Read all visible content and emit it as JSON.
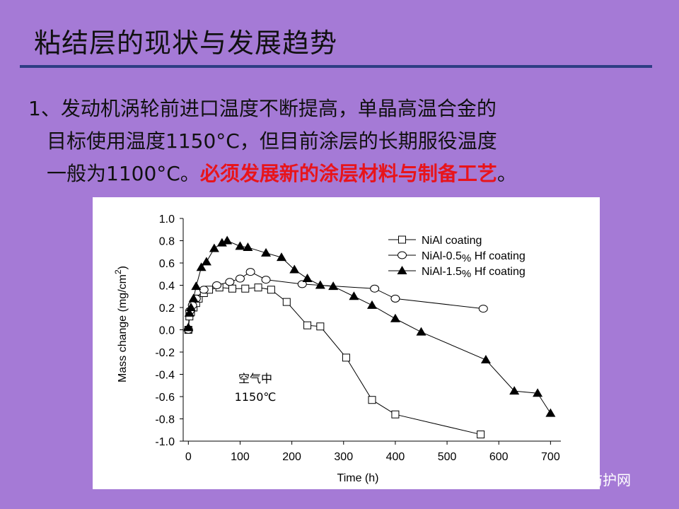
{
  "slide": {
    "title": "粘结层的现状与发展趋势",
    "line1": "1、发动机涡轮前进口温度不断提高，单晶高温合金的",
    "line2": "目标使用温度1150°C，但目前涂层的长期服役温度",
    "line3_normal": "一般为1100°C。",
    "line3_red": "必须发展新的涂层材料与制备工艺",
    "line3_end": "。"
  },
  "watermark": {
    "text": "中国腐蚀与防护网",
    "icon": "wechat-icon"
  },
  "colors": {
    "background": "#a57ad6",
    "rule": "#2e3d84",
    "highlight": "#e8141b"
  },
  "chart_data": {
    "type": "line",
    "xlabel": "Time  (h)",
    "ylabel": "Mass change  (mg/cm",
    "ylabel_sup": "2",
    "ylabel_end": ")",
    "xlim": [
      -10,
      720
    ],
    "ylim": [
      -1.0,
      1.0
    ],
    "xticks": [
      "0",
      "100",
      "200",
      "300",
      "400",
      "500",
      "600",
      "700"
    ],
    "xtick_values": [
      0,
      100,
      200,
      300,
      400,
      500,
      600,
      700
    ],
    "yticks": [
      "1.0",
      "0.8",
      "0.6",
      "0.4",
      "0.2",
      "0.0",
      "-0.2",
      "-0.4",
      "-0.6",
      "-0.8",
      "-1.0"
    ],
    "ytick_values": [
      1.0,
      0.8,
      0.6,
      0.4,
      0.2,
      0.0,
      -0.2,
      -0.4,
      -0.6,
      -0.8,
      -1.0
    ],
    "annotation": [
      "空气中",
      "1150℃"
    ],
    "legend_position": "top-right",
    "series": [
      {
        "name": "NiAl coating",
        "marker": "square",
        "points": [
          [
            0,
            0.0
          ],
          [
            2,
            0.12
          ],
          [
            5,
            0.16
          ],
          [
            10,
            0.2
          ],
          [
            15,
            0.24
          ],
          [
            20,
            0.28
          ],
          [
            30,
            0.33
          ],
          [
            40,
            0.36
          ],
          [
            60,
            0.38
          ],
          [
            85,
            0.37
          ],
          [
            110,
            0.37
          ],
          [
            135,
            0.38
          ],
          [
            160,
            0.36
          ],
          [
            190,
            0.25
          ],
          [
            230,
            0.04
          ],
          [
            255,
            0.03
          ],
          [
            305,
            -0.25
          ],
          [
            355,
            -0.63
          ],
          [
            400,
            -0.76
          ],
          [
            565,
            -0.94
          ]
        ]
      },
      {
        "name": "NiAl-0.5% Hf coating",
        "legend_parts": [
          "NiAl-0.5",
          "%",
          " Hf coating"
        ],
        "marker": "circle",
        "points": [
          [
            0,
            0.0
          ],
          [
            3,
            0.17
          ],
          [
            8,
            0.22
          ],
          [
            15,
            0.28
          ],
          [
            30,
            0.36
          ],
          [
            55,
            0.4
          ],
          [
            80,
            0.43
          ],
          [
            100,
            0.46
          ],
          [
            120,
            0.52
          ],
          [
            150,
            0.45
          ],
          [
            220,
            0.41
          ],
          [
            360,
            0.37
          ],
          [
            400,
            0.28
          ],
          [
            570,
            0.19
          ]
        ]
      },
      {
        "name": "NiAl-1.5% Hf coating",
        "legend_parts": [
          "NiAl-1.5",
          "%",
          " Hf coating"
        ],
        "marker": "triangle",
        "points": [
          [
            0,
            0.02
          ],
          [
            2,
            0.15
          ],
          [
            5,
            0.2
          ],
          [
            10,
            0.28
          ],
          [
            15,
            0.39
          ],
          [
            25,
            0.56
          ],
          [
            35,
            0.61
          ],
          [
            50,
            0.73
          ],
          [
            65,
            0.78
          ],
          [
            75,
            0.8
          ],
          [
            100,
            0.75
          ],
          [
            115,
            0.74
          ],
          [
            150,
            0.69
          ],
          [
            180,
            0.65
          ],
          [
            205,
            0.54
          ],
          [
            230,
            0.46
          ],
          [
            255,
            0.4
          ],
          [
            280,
            0.39
          ],
          [
            320,
            0.3
          ],
          [
            355,
            0.22
          ],
          [
            400,
            0.1
          ],
          [
            450,
            -0.02
          ],
          [
            575,
            -0.27
          ],
          [
            630,
            -0.55
          ],
          [
            675,
            -0.57
          ],
          [
            700,
            -0.75
          ]
        ]
      }
    ]
  }
}
